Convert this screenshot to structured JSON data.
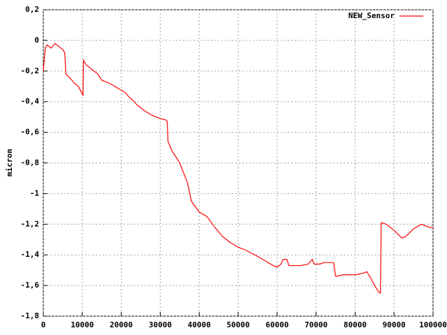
{
  "chart_data": {
    "type": "line",
    "y_label": "micron",
    "x": [
      0,
      500,
      1000,
      2000,
      3000,
      4000,
      5000,
      5500,
      5800,
      7000,
      8000,
      9000,
      10000,
      10200,
      10300,
      11000,
      12000,
      13000,
      14000,
      15000,
      17000,
      19000,
      21000,
      22000,
      23000,
      24000,
      26000,
      28000,
      30000,
      31500,
      31800,
      32000,
      33000,
      35000,
      37000,
      38000,
      40000,
      42000,
      44000,
      46000,
      48000,
      50000,
      52000,
      55000,
      57000,
      59000,
      60000,
      61000,
      61500,
      62500,
      63000,
      66000,
      68000,
      69000,
      69500,
      71000,
      72000,
      74500,
      75000,
      77000,
      80000,
      82000,
      83000,
      84000,
      85000,
      86000,
      86500,
      86700,
      88000,
      90000,
      92000,
      93000,
      95000,
      97000,
      99000,
      100000
    ],
    "series": [
      {
        "name": "NEW_Sensor",
        "color": "#ff0000",
        "values": [
          -0.2,
          -0.05,
          -0.03,
          -0.05,
          -0.02,
          -0.04,
          -0.06,
          -0.08,
          -0.22,
          -0.25,
          -0.28,
          -0.3,
          -0.35,
          -0.36,
          -0.13,
          -0.16,
          -0.18,
          -0.2,
          -0.22,
          -0.26,
          -0.28,
          -0.31,
          -0.34,
          -0.37,
          -0.39,
          -0.42,
          -0.46,
          -0.49,
          -0.51,
          -0.52,
          -0.53,
          -0.66,
          -0.72,
          -0.8,
          -0.93,
          -1.05,
          -1.12,
          -1.15,
          -1.22,
          -1.28,
          -1.32,
          -1.35,
          -1.37,
          -1.41,
          -1.44,
          -1.47,
          -1.48,
          -1.46,
          -1.43,
          -1.43,
          -1.47,
          -1.47,
          -1.46,
          -1.43,
          -1.46,
          -1.46,
          -1.45,
          -1.45,
          -1.54,
          -1.53,
          -1.53,
          -1.52,
          -1.51,
          -1.55,
          -1.6,
          -1.64,
          -1.65,
          -1.19,
          -1.2,
          -1.24,
          -1.29,
          -1.28,
          -1.23,
          -1.2,
          -1.22,
          -1.22
        ]
      }
    ],
    "xlim": [
      0,
      100000
    ],
    "xticks": [
      0,
      10000,
      20000,
      30000,
      40000,
      50000,
      60000,
      70000,
      80000,
      90000,
      100000
    ],
    "ylim": [
      -1.8,
      0.2
    ],
    "yticks": [
      {
        "value": -1.8,
        "label": "-1,8"
      },
      {
        "value": -1.6,
        "label": "-1,6"
      },
      {
        "value": -1.4,
        "label": "-1,4"
      },
      {
        "value": -1.2,
        "label": "-1,2"
      },
      -1,
      {
        "value": -0.8,
        "label": "-0,8"
      },
      {
        "value": -0.6,
        "label": "-0,6"
      },
      {
        "value": -0.4,
        "label": "-0,4"
      },
      {
        "value": -0.2,
        "label": "-0,2"
      },
      0,
      {
        "value": 0.2,
        "label": "0,2"
      }
    ],
    "grid": true,
    "legend": "top-right"
  }
}
